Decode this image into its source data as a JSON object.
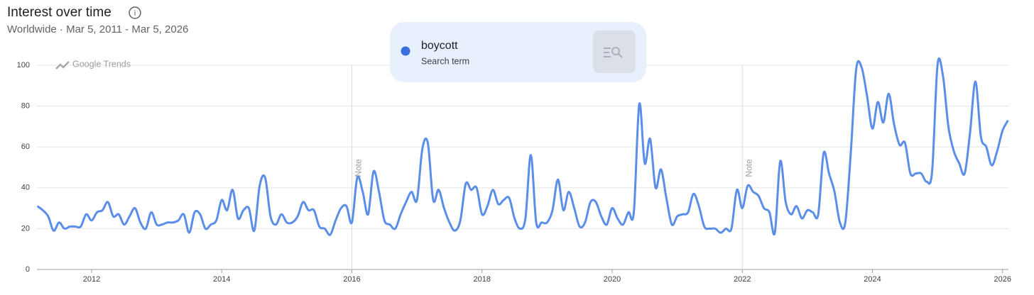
{
  "chart_data": {
    "type": "line",
    "title": "Interest over time",
    "subtitle": "Worldwide · Mar 5, 2011 - Mar 5, 2026",
    "watermark": "Google Trends",
    "legend": {
      "term": "boycott",
      "kind": "Search term"
    },
    "annotations": [
      {
        "label": "Note",
        "x": 2016
      },
      {
        "label": "Note",
        "x": 2022
      }
    ],
    "xlim": [
      2011.16,
      2026.09
    ],
    "xticks": [
      2012,
      2014,
      2016,
      2018,
      2020,
      2022,
      2024,
      2026
    ],
    "ylim": [
      0,
      100
    ],
    "yticks": [
      0,
      20,
      40,
      60,
      80,
      100
    ],
    "grid": true,
    "x": [
      2011.167,
      2011.25,
      2011.333,
      2011.417,
      2011.5,
      2011.583,
      2011.667,
      2011.75,
      2011.833,
      2011.917,
      2012,
      2012.083,
      2012.167,
      2012.25,
      2012.333,
      2012.417,
      2012.5,
      2012.583,
      2012.667,
      2012.75,
      2012.833,
      2012.917,
      2013,
      2013.083,
      2013.167,
      2013.25,
      2013.333,
      2013.417,
      2013.5,
      2013.583,
      2013.667,
      2013.75,
      2013.833,
      2013.917,
      2014,
      2014.083,
      2014.167,
      2014.25,
      2014.333,
      2014.417,
      2014.5,
      2014.583,
      2014.667,
      2014.75,
      2014.833,
      2014.917,
      2015,
      2015.083,
      2015.167,
      2015.25,
      2015.333,
      2015.417,
      2015.5,
      2015.583,
      2015.667,
      2015.75,
      2015.833,
      2015.917,
      2016,
      2016.083,
      2016.167,
      2016.25,
      2016.333,
      2016.417,
      2016.5,
      2016.583,
      2016.667,
      2016.75,
      2016.833,
      2016.917,
      2017,
      2017.083,
      2017.167,
      2017.25,
      2017.333,
      2017.417,
      2017.5,
      2017.583,
      2017.667,
      2017.75,
      2017.833,
      2017.917,
      2018,
      2018.083,
      2018.167,
      2018.25,
      2018.333,
      2018.417,
      2018.5,
      2018.583,
      2018.667,
      2018.75,
      2018.833,
      2018.917,
      2019,
      2019.083,
      2019.167,
      2019.25,
      2019.333,
      2019.417,
      2019.5,
      2019.583,
      2019.667,
      2019.75,
      2019.833,
      2019.917,
      2020,
      2020.083,
      2020.167,
      2020.25,
      2020.333,
      2020.417,
      2020.5,
      2020.583,
      2020.667,
      2020.75,
      2020.833,
      2020.917,
      2021,
      2021.083,
      2021.167,
      2021.25,
      2021.333,
      2021.417,
      2021.5,
      2021.583,
      2021.667,
      2021.75,
      2021.833,
      2021.917,
      2022,
      2022.083,
      2022.167,
      2022.25,
      2022.333,
      2022.417,
      2022.5,
      2022.583,
      2022.667,
      2022.75,
      2022.833,
      2022.917,
      2023,
      2023.083,
      2023.167,
      2023.25,
      2023.333,
      2023.417,
      2023.5,
      2023.583,
      2023.667,
      2023.75,
      2023.833,
      2023.917,
      2024,
      2024.083,
      2024.167,
      2024.25,
      2024.333,
      2024.417,
      2024.5,
      2024.583,
      2024.667,
      2024.75,
      2024.833,
      2024.917,
      2025,
      2025.083,
      2025.167,
      2025.25,
      2025.333,
      2025.417,
      2025.5,
      2025.583,
      2025.667,
      2025.75,
      2025.833,
      2025.917,
      2026,
      2026.083
    ],
    "series": [
      {
        "name": "boycott",
        "color": "#5a8ee8",
        "values": [
          31,
          29,
          26,
          19,
          23,
          20,
          21,
          21,
          21,
          27,
          24,
          28,
          29,
          33,
          26,
          27,
          22,
          26,
          30,
          23,
          20,
          28,
          22,
          22,
          23,
          23,
          24,
          27,
          18,
          28,
          27,
          20,
          22,
          24,
          34,
          29,
          39,
          25,
          29,
          30,
          19,
          41,
          45,
          26,
          22,
          27,
          23,
          23,
          26,
          33,
          29,
          29,
          21,
          20,
          17,
          24,
          30,
          31,
          23,
          45,
          38,
          27,
          48,
          38,
          24,
          22,
          20,
          27,
          33,
          38,
          34,
          59,
          62,
          34,
          39,
          30,
          23,
          19,
          24,
          42,
          39,
          40,
          27,
          31,
          39,
          32,
          34,
          35,
          25,
          20,
          25,
          56,
          23,
          23,
          23,
          29,
          44,
          29,
          38,
          30,
          21,
          23,
          33,
          33,
          26,
          22,
          30,
          25,
          22,
          28,
          28,
          81,
          52,
          64,
          40,
          49,
          35,
          22,
          26,
          27,
          28,
          37,
          31,
          21,
          20,
          20,
          18,
          20,
          20,
          39,
          30,
          41,
          38,
          36,
          30,
          28,
          18,
          53,
          33,
          27,
          31,
          25,
          29,
          28,
          27,
          57,
          47,
          38,
          23,
          23,
          57,
          98,
          99,
          85,
          69,
          82,
          72,
          86,
          71,
          61,
          62,
          47,
          47,
          47,
          43,
          48,
          100,
          95,
          70,
          58,
          52,
          47,
          67,
          92,
          65,
          60,
          51,
          58,
          68,
          73
        ]
      }
    ]
  }
}
